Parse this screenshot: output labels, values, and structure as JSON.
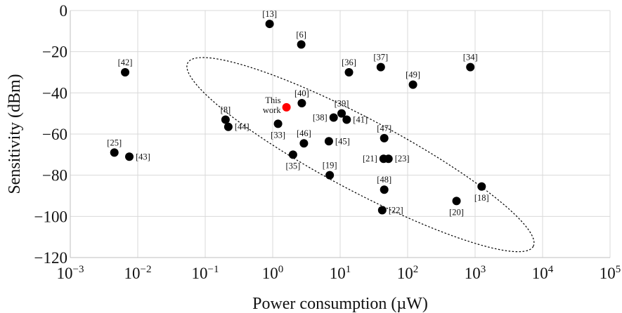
{
  "chart_data": {
    "type": "scatter",
    "xscale": "log",
    "xlim": [
      0.001,
      100000
    ],
    "ylim": [
      -120,
      0
    ],
    "xlabel": "Power consumption (µW)",
    "ylabel": "Sensitivity (dBm)",
    "grid": true,
    "x_ticks": [
      {
        "value": 0.001,
        "base": "10",
        "exp": "−3"
      },
      {
        "value": 0.01,
        "base": "10",
        "exp": "−2"
      },
      {
        "value": 0.1,
        "base": "10",
        "exp": "−1"
      },
      {
        "value": 1,
        "base": "10",
        "exp": "0"
      },
      {
        "value": 10,
        "base": "10",
        "exp": "1"
      },
      {
        "value": 100,
        "base": "10",
        "exp": "2"
      },
      {
        "value": 1000,
        "base": "10",
        "exp": "3"
      },
      {
        "value": 10000,
        "base": "10",
        "exp": "4"
      },
      {
        "value": 100000,
        "base": "10",
        "exp": "5"
      }
    ],
    "y_ticks": [
      {
        "value": 0,
        "label": "0"
      },
      {
        "value": -20,
        "label": "−20"
      },
      {
        "value": -40,
        "label": "−40"
      },
      {
        "value": -60,
        "label": "−60"
      },
      {
        "value": -80,
        "label": "−80"
      },
      {
        "value": -100,
        "label": "−100"
      },
      {
        "value": -120,
        "label": "−120"
      }
    ],
    "highlight_color": "#ff0000",
    "point_color": "#000000",
    "series": [
      {
        "name": "This work",
        "color": "#ff0000",
        "points": [
          {
            "x": 1.6,
            "y": -47,
            "label": "This\nwork",
            "pos": "left-2"
          }
        ]
      },
      {
        "name": "",
        "color": "#000000",
        "points": [
          {
            "x": 0.9,
            "y": -6.5,
            "label": "[13]",
            "pos": "above"
          },
          {
            "x": 2.65,
            "y": -16.5,
            "label": "[6]",
            "pos": "above"
          },
          {
            "x": 0.0065,
            "y": -30,
            "label": "[42]",
            "pos": "above"
          },
          {
            "x": 13.5,
            "y": -30,
            "label": "[36]",
            "pos": "above"
          },
          {
            "x": 40,
            "y": -27.5,
            "label": "[37]",
            "pos": "above"
          },
          {
            "x": 850,
            "y": -27.5,
            "label": "[34]",
            "pos": "above"
          },
          {
            "x": 120,
            "y": -36,
            "label": "[49]",
            "pos": "above"
          },
          {
            "x": 2.7,
            "y": -45,
            "label": "[40]",
            "pos": "above"
          },
          {
            "x": 10.5,
            "y": -50,
            "label": "[39]",
            "pos": "above"
          },
          {
            "x": 8,
            "y": -52,
            "label": "[38]",
            "pos": "left"
          },
          {
            "x": 12.5,
            "y": -53,
            "label": "[41]",
            "pos": "right"
          },
          {
            "x": 0.2,
            "y": -53,
            "label": "[8]",
            "pos": "above"
          },
          {
            "x": 0.22,
            "y": -56.5,
            "label": "[44]",
            "pos": "right"
          },
          {
            "x": 1.2,
            "y": -55,
            "label": "[33]",
            "pos": "below"
          },
          {
            "x": 2.9,
            "y": -64.5,
            "label": "[46]",
            "pos": "above"
          },
          {
            "x": 6.8,
            "y": -63.5,
            "label": "[45]",
            "pos": "right"
          },
          {
            "x": 45,
            "y": -62,
            "label": "[47]",
            "pos": "above"
          },
          {
            "x": 0.0045,
            "y": -69,
            "label": "[25]",
            "pos": "above"
          },
          {
            "x": 0.0075,
            "y": -71,
            "label": "[43]",
            "pos": "right"
          },
          {
            "x": 2.0,
            "y": -70,
            "label": "[35]",
            "pos": "below"
          },
          {
            "x": 44,
            "y": -72,
            "label": "[21]",
            "pos": "left"
          },
          {
            "x": 52,
            "y": -72,
            "label": "[23]",
            "pos": "right"
          },
          {
            "x": 7,
            "y": -80,
            "label": "[19]",
            "pos": "above"
          },
          {
            "x": 45,
            "y": -87,
            "label": "[48]",
            "pos": "above"
          },
          {
            "x": 1250,
            "y": -85.5,
            "label": "[18]",
            "pos": "below"
          },
          {
            "x": 530,
            "y": -92.5,
            "label": "[20]",
            "pos": "below"
          },
          {
            "x": 42,
            "y": -97,
            "label": "[22]",
            "pos": "right"
          }
        ]
      }
    ],
    "annotations": [
      {
        "type": "dashed-ellipse",
        "center": {
          "x": 20,
          "y": -70
        },
        "semi_major_decades": 2.9,
        "semi_minor_dbm": 17.5,
        "rotation_deg": 28
      }
    ]
  }
}
